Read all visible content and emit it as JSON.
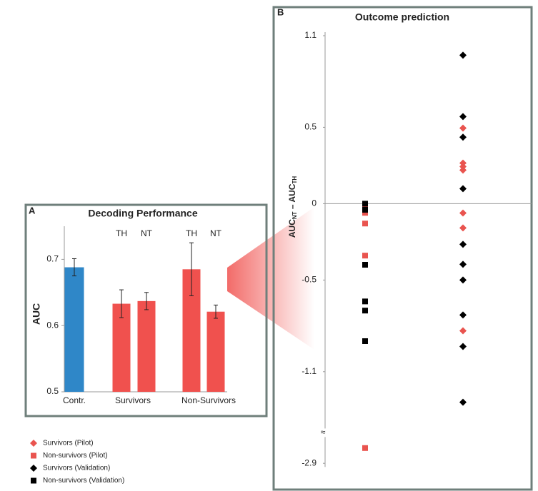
{
  "chart_data": [
    {
      "type": "bar",
      "panel_label": "A",
      "title": "Decoding Performance",
      "y_label": "AUC",
      "ylim": [
        0.5,
        0.75
      ],
      "yticks": [
        0.5,
        0.6,
        0.7
      ],
      "groups": [
        {
          "name": "Contr.",
          "bars": [
            {
              "value": 0.688,
              "error": 0.013,
              "color": "#2f87c8"
            }
          ]
        },
        {
          "name": "Survivors",
          "bars": [
            {
              "label": "TH",
              "value": 0.633,
              "error": 0.021,
              "color": "#f0514e"
            },
            {
              "label": "NT",
              "value": 0.637,
              "error": 0.013,
              "color": "#f0514e"
            }
          ]
        },
        {
          "name": "Non-Survivors",
          "bars": [
            {
              "label": "TH",
              "value": 0.685,
              "error": 0.04,
              "color": "#f0514e"
            },
            {
              "label": "NT",
              "value": 0.621,
              "error": 0.01,
              "color": "#f0514e"
            }
          ]
        }
      ]
    },
    {
      "type": "scatter",
      "panel_label": "B",
      "title": "Outcome prediction",
      "y_label": [
        "AUC",
        "NT",
        " – AUC",
        "TH"
      ],
      "ylim": [
        -2.9,
        1.1
      ],
      "yticks": [
        1.1,
        0.5,
        0,
        -0.5,
        -1.1,
        -2.9
      ],
      "ybreak": [
        -1.5,
        -2.7
      ],
      "break_symbol": "≈",
      "xaxis_at": 0,
      "series": [
        {
          "name": "Survivors (Pilot)",
          "marker": "diamond",
          "color": "#e9544f",
          "values": [
            0.495,
            0.266,
            0.243,
            0.22,
            -0.061,
            -0.159,
            -0.832
          ]
        },
        {
          "name": "Non-survivors (Pilot)",
          "marker": "square",
          "color": "#e9544f",
          "values": [
            -0.02,
            -0.06,
            -0.13,
            -0.34,
            -2.8
          ]
        },
        {
          "name": "Survivors (Validation)",
          "marker": "diamond",
          "color": "#000000",
          "values": [
            0.972,
            0.57,
            0.435,
            0.098,
            -0.266,
            -0.397,
            -0.5,
            -0.729,
            -0.935,
            -1.3
          ]
        },
        {
          "name": "Non-survivors (Validation)",
          "marker": "square",
          "color": "#000000",
          "values": [
            0.0,
            -0.04,
            -0.4,
            -0.64,
            -0.7,
            -0.9
          ]
        }
      ]
    }
  ]
}
